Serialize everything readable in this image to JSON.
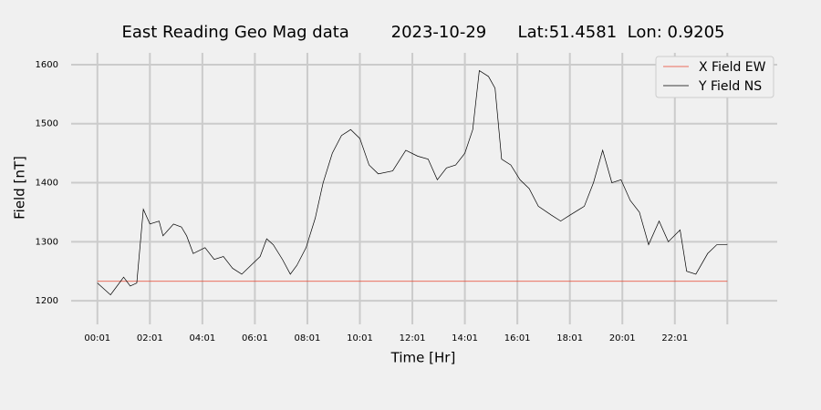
{
  "chart_data": {
    "type": "line",
    "title": "East Reading Geo Mag data        2023-10-29      Lat:51.4581  Lon: 0.9205",
    "xlabel": "Time  [Hr]",
    "ylabel": "Field  [nT]",
    "xlim": [
      -1,
      25.9
    ],
    "ylim": [
      1177,
      1620
    ],
    "xticks": [
      {
        "value": 0,
        "label": "00:01"
      },
      {
        "value": 2,
        "label": "02:01"
      },
      {
        "value": 4,
        "label": "04:01"
      },
      {
        "value": 6,
        "label": "06:01"
      },
      {
        "value": 8,
        "label": "08:01"
      },
      {
        "value": 10,
        "label": "10:01"
      },
      {
        "value": 12,
        "label": "12:01"
      },
      {
        "value": 14,
        "label": "14:01"
      },
      {
        "value": 16,
        "label": "16:01"
      },
      {
        "value": 18,
        "label": "18:01"
      },
      {
        "value": 20,
        "label": "20:01"
      },
      {
        "value": 22,
        "label": "22:01"
      },
      {
        "value": 24,
        "label": null
      }
    ],
    "yticks": [
      1200,
      1300,
      1400,
      1500,
      1600
    ],
    "grid": true,
    "legend": "upper right",
    "series": [
      {
        "name": "X Field EW",
        "color": "#e8402a",
        "x": [
          0,
          24
        ],
        "values": [
          1233,
          1233
        ]
      },
      {
        "name": "Y Field NS",
        "color": "#000000",
        "x": [
          0,
          0.5,
          1.0,
          1.25,
          1.5,
          1.75,
          2.0,
          2.35,
          2.5,
          2.9,
          3.2,
          3.4,
          3.65,
          4.1,
          4.45,
          4.8,
          5.15,
          5.5,
          5.85,
          6.2,
          6.45,
          6.7,
          7.05,
          7.35,
          7.6,
          7.95,
          8.3,
          8.6,
          8.95,
          9.3,
          9.65,
          10.0,
          10.35,
          10.7,
          11.25,
          11.75,
          12.2,
          12.6,
          12.95,
          13.3,
          13.65,
          14.0,
          14.3,
          14.55,
          14.9,
          15.15,
          15.4,
          15.75,
          16.1,
          16.45,
          16.8,
          17.3,
          17.65,
          18.0,
          18.55,
          18.9,
          19.25,
          19.6,
          19.95,
          20.3,
          20.65,
          21.0,
          21.4,
          21.75,
          22.2,
          22.45,
          22.8,
          23.25,
          23.6,
          24.0
        ],
        "values": [
          1230,
          1210,
          1240,
          1225,
          1230,
          1355,
          1330,
          1335,
          1310,
          1330,
          1325,
          1310,
          1280,
          1290,
          1270,
          1275,
          1255,
          1245,
          1260,
          1275,
          1305,
          1295,
          1270,
          1245,
          1260,
          1290,
          1340,
          1400,
          1450,
          1480,
          1490,
          1475,
          1430,
          1415,
          1420,
          1455,
          1445,
          1440,
          1405,
          1425,
          1430,
          1450,
          1490,
          1590,
          1580,
          1560,
          1440,
          1430,
          1405,
          1390,
          1360,
          1345,
          1335,
          1345,
          1360,
          1400,
          1455,
          1400,
          1405,
          1370,
          1350,
          1295,
          1335,
          1300,
          1320,
          1250,
          1245,
          1280,
          1295,
          1295
        ]
      }
    ]
  }
}
